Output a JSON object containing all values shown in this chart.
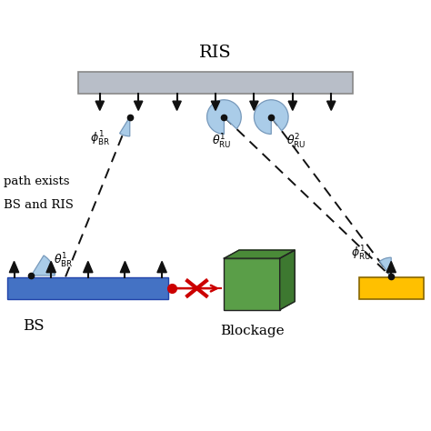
{
  "title": "RIS",
  "bs_label": "BS",
  "blockage_label": "Blockage",
  "ris_color": "#b8bec8",
  "bs_color": "#4472c4",
  "ue_color": "#ffc000",
  "blockage_front": "#5a9e48",
  "blockage_top": "#4a8a38",
  "blockage_right": "#3d7830",
  "phi_br_label": "$\\phi^{1}_{\\mathrm{BR}}$",
  "theta_br_label": "$\\theta^{1}_{\\mathrm{BR}}$",
  "theta_ru1_label": "$\\theta^{1}_{\\mathrm{RU}}$",
  "theta_ru2_label": "$\\theta^{2}_{\\mathrm{RU}}$",
  "phi_ru_label": "$\\phi^{1}_{\\mathrm{RU}}$",
  "side_text1": "path exists",
  "side_text2": "BS and RIS",
  "bg_color": "#ffffff",
  "arc_color": "#aacce8",
  "arc_edge": "#7799bb",
  "dashed_color": "#111111",
  "red_color": "#cc0000"
}
